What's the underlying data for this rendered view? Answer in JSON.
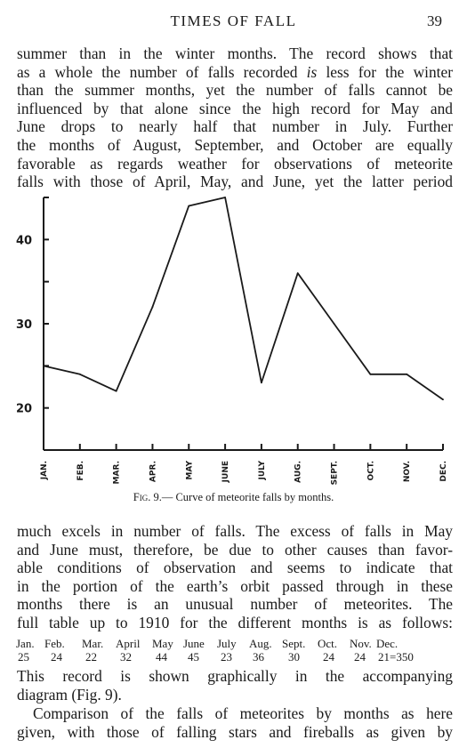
{
  "header": {
    "title": "TIMES OF FALL",
    "page_number": "39"
  },
  "paragraph_top": [
    "summer than in the winter months.  The record shows that",
    "as a whole the number of falls recorded is less for the winter",
    "than the summer months, yet the number of falls cannot be",
    "influenced by that alone since the high record for May and",
    "June drops to nearly half that number in July.  Further",
    "the months of August, September, and October are equally",
    "favorable as regards weather for observations of meteorite",
    "falls with those of April, May, and June, yet the latter period"
  ],
  "caption": {
    "fig": "Fig. 9.",
    "text": "— Curve of meteorite falls by months."
  },
  "paragraph_middle": [
    "much excels in number of falls.  The excess of falls in May",
    "and June must, therefore, be due to other causes than favor-",
    "able conditions of observation and seems to indicate that",
    "in the portion of the earth’s orbit passed through  in these",
    "months there is an unusual number of meteorites.  The",
    "full table up to 1910 for the different months is as follows:"
  ],
  "table": {
    "months": [
      "Jan.",
      "Feb.",
      "Mar.",
      "April",
      "May",
      "June",
      "July",
      "Aug.",
      "Sept.",
      "Oct.",
      "Nov.",
      "Dec."
    ],
    "counts": [
      "25",
      "24",
      "22",
      "32",
      "44",
      "45",
      "23",
      "36",
      "30",
      "24",
      "24",
      "21=350"
    ]
  },
  "paragraph_after": [
    "This record is shown graphically in the accompanying",
    "diagram (Fig. 9)."
  ],
  "paragraph_last": [
    "Comparison of the falls of meteorites by months as here",
    "given, with those of falling stars and fireballs as given by"
  ],
  "chart_data": {
    "type": "line",
    "categories": [
      "JAN.",
      "FEB.",
      "MAR.",
      "APR.",
      "MAY",
      "JUNE",
      "JULY",
      "AUG.",
      "SEPT.",
      "OCT.",
      "NOV.",
      "DEC."
    ],
    "series": [
      {
        "values": [
          25,
          24,
          22,
          32,
          44,
          45,
          23,
          36,
          30,
          24,
          24,
          21
        ]
      }
    ],
    "y_tick_labels": [
      "20",
      "30",
      "40"
    ],
    "ylim": [
      15,
      45
    ],
    "grid": false,
    "line_color": "#1a1a1a"
  }
}
